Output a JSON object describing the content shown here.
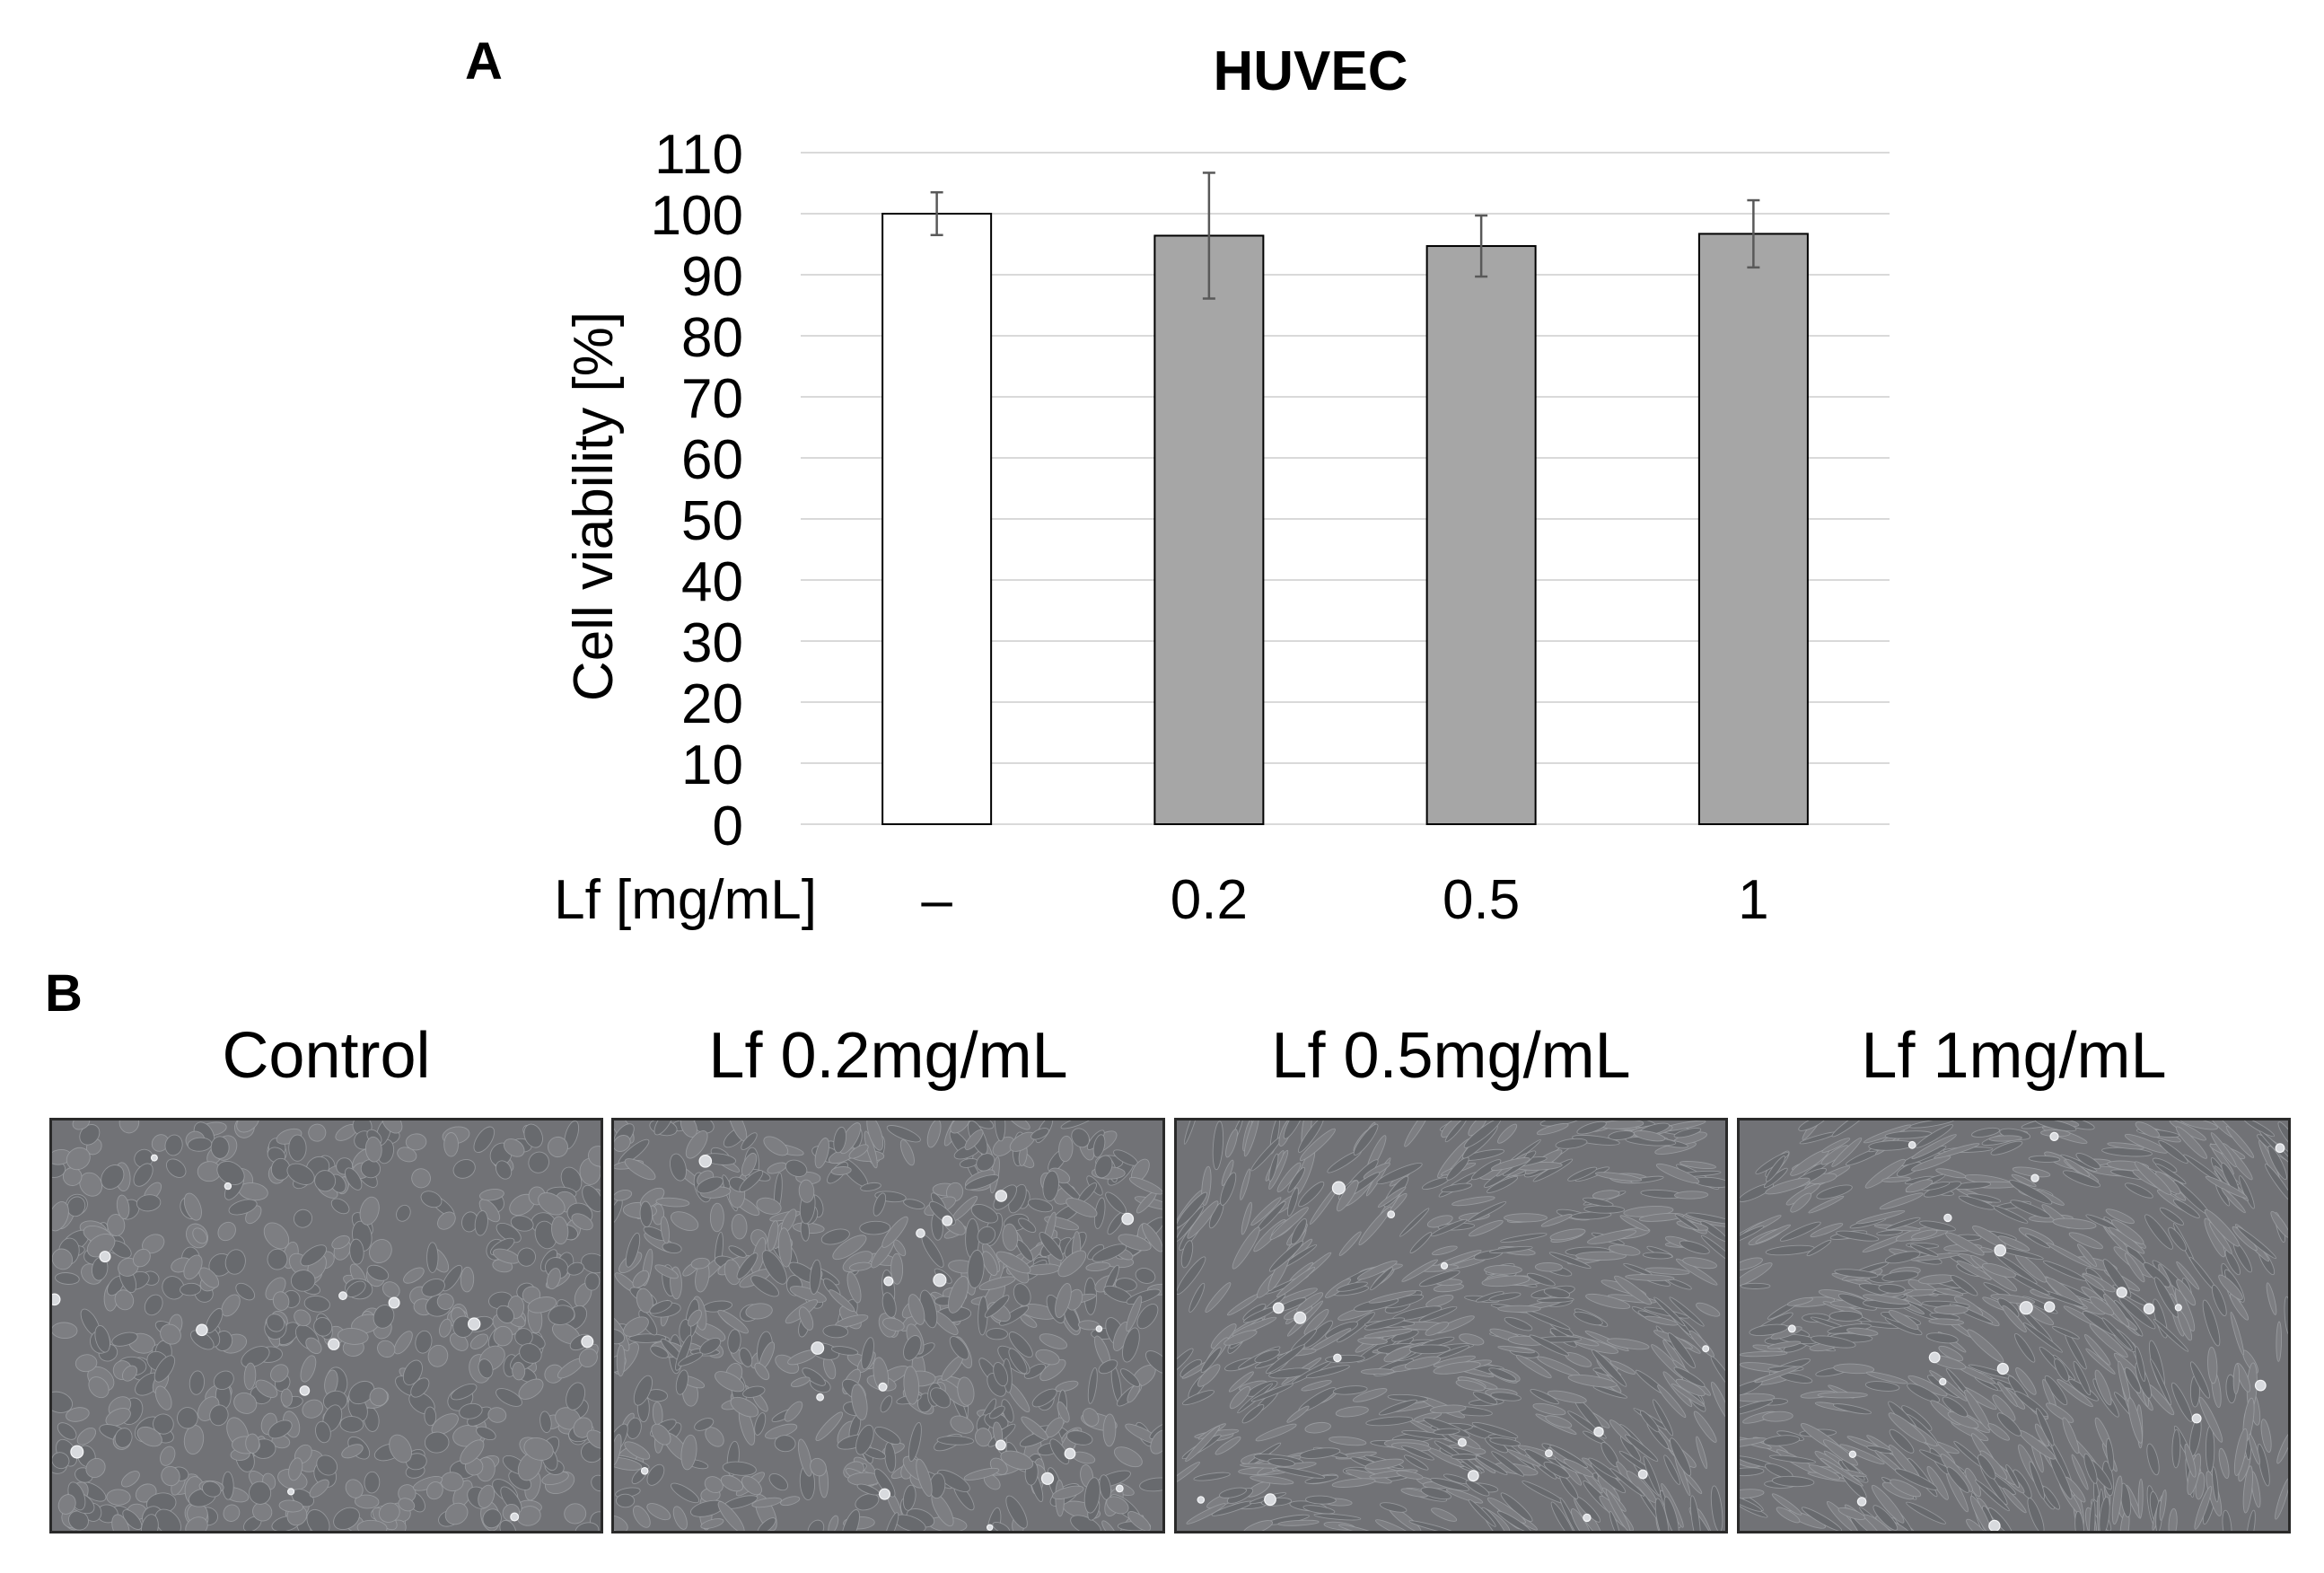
{
  "panel_a": {
    "label": "A",
    "chart_data": {
      "type": "bar",
      "title": "HUVEC",
      "xlabel": "Lf [mg/mL]",
      "ylabel": "Cell viability [%]",
      "categories": [
        "–",
        "0.2",
        "0.5",
        "1"
      ],
      "values": [
        100,
        96.4,
        94.7,
        96.7
      ],
      "error": [
        3.5,
        10.3,
        5.0,
        5.5
      ],
      "ylim": [
        0,
        110
      ],
      "yticks": [
        0,
        10,
        20,
        30,
        40,
        50,
        60,
        70,
        80,
        90,
        100,
        110
      ],
      "grid": true,
      "bar_colors": [
        "#ffffff",
        "#a6a6a6",
        "#a6a6a6",
        "#a6a6a6"
      ],
      "bar_edge_color": "#000000",
      "error_color": "#595959",
      "grid_color": "#d9d9d9"
    }
  },
  "panel_b": {
    "label": "B",
    "images": [
      {
        "title": "Control",
        "density": "cobblestone"
      },
      {
        "title": "Lf 0.2mg/mL",
        "density": "mixed"
      },
      {
        "title": "Lf 0.5mg/mL",
        "density": "elongated"
      },
      {
        "title": "Lf 1mg/mL",
        "density": "elongated"
      }
    ],
    "background_color": "#717276"
  }
}
